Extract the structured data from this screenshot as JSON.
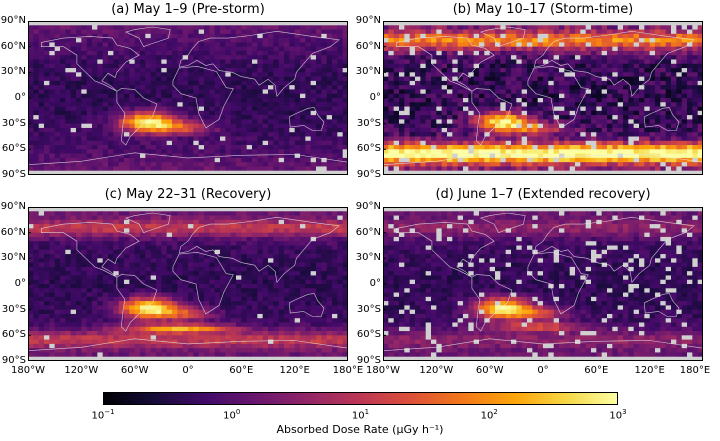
{
  "panels": [
    {
      "title": "(a) May 1–9 (Pre-storm)",
      "phase": "pre"
    },
    {
      "title": "(b) May 10–17 (Storm-time)",
      "phase": "storm"
    },
    {
      "title": "(c) May 22–31 (Recovery)",
      "phase": "recovery"
    },
    {
      "title": "(d) June 1–7 (Extended recovery)",
      "phase": "extended"
    }
  ],
  "lat_ticks": [
    "90°N",
    "60°N",
    "30°N",
    "0°",
    "30°S",
    "60°S",
    "90°S"
  ],
  "lon_ticks": [
    "180°W",
    "120°W",
    "60°W",
    "0°",
    "60°E",
    "120°E",
    "180°E"
  ],
  "colorbar": {
    "label": "Absorbed Dose Rate (μGy h⁻¹)",
    "scale": "log",
    "range": [
      0.1,
      1000
    ],
    "ticks": [
      {
        "base": "10",
        "exp": "−1"
      },
      {
        "base": "10",
        "exp": "0"
      },
      {
        "base": "10",
        "exp": "1"
      },
      {
        "base": "10",
        "exp": "2"
      },
      {
        "base": "10",
        "exp": "3"
      }
    ],
    "colormap": "inferno"
  },
  "chart_data": {
    "type": "heatmap",
    "panels": 4,
    "x_range_deg": [
      -180,
      180
    ],
    "y_range_deg": [
      -90,
      90
    ],
    "colors": {
      "missing": "#d0d0d0",
      "coast": "#e6e6e6"
    }
  }
}
